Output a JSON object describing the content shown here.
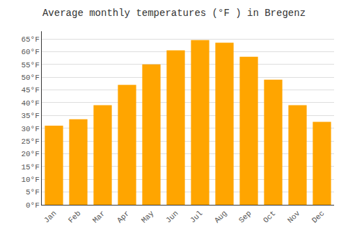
{
  "chart_data": {
    "type": "bar",
    "title": "Average monthly temperatures (°F ) in Bregenz",
    "categories": [
      "Jan",
      "Feb",
      "Mar",
      "Apr",
      "May",
      "Jun",
      "Jul",
      "Aug",
      "Sep",
      "Oct",
      "Nov",
      "Dec"
    ],
    "values": [
      31,
      33.5,
      39,
      47,
      55,
      60.5,
      64.5,
      63.5,
      58,
      49,
      39,
      32.5
    ],
    "color": "#FFA500",
    "ylim": [
      0,
      68
    ],
    "yticks": [
      {
        "value": 0,
        "label": "0°F"
      },
      {
        "value": 5,
        "label": "5°F"
      },
      {
        "value": 10,
        "label": "10°F"
      },
      {
        "value": 15,
        "label": "15°F"
      },
      {
        "value": 20,
        "label": "20°F"
      },
      {
        "value": 25,
        "label": "25°F"
      },
      {
        "value": 30,
        "label": "30°F"
      },
      {
        "value": 35,
        "label": "35°F"
      },
      {
        "value": 40,
        "label": "40°F"
      },
      {
        "value": 45,
        "label": "45°F"
      },
      {
        "value": 50,
        "label": "50°F"
      },
      {
        "value": 55,
        "label": "55°F"
      },
      {
        "value": 60,
        "label": "60°F"
      },
      {
        "value": 65,
        "label": "65°F"
      }
    ],
    "grid": true
  }
}
